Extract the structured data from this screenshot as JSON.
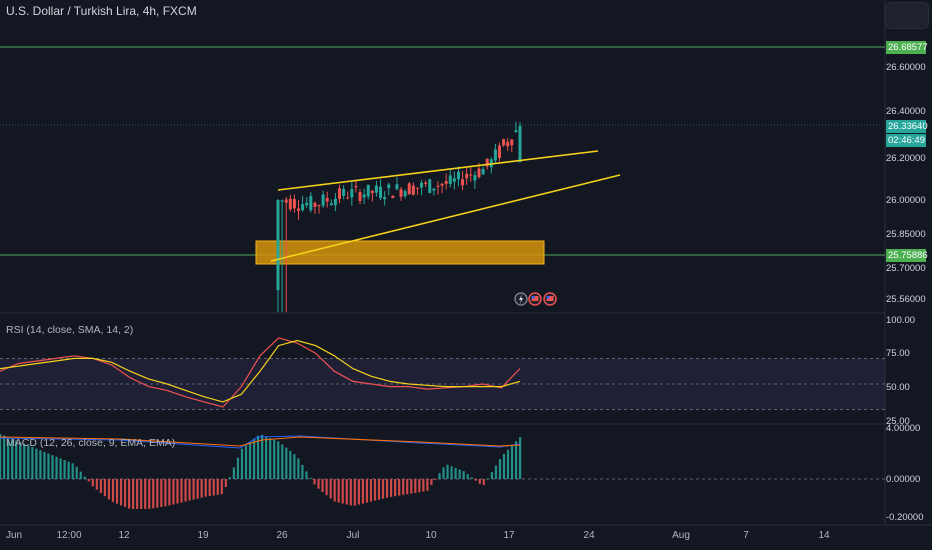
{
  "header": {
    "title": "U.S. Dollar / Turkish Lira, 4h, FXCM"
  },
  "colors": {
    "background": "#131722",
    "up": "#26a69a",
    "down": "#ef5350",
    "trendline": "#f5d21b",
    "zone": "#d7940a",
    "level": "#4caf50",
    "rsi": "#ef5350",
    "rsi_ma": "#f5d21b",
    "rsi_band": "#7e57c2",
    "macd_pos": "#26a69a",
    "macd_neg": "#ef5350",
    "macd_line": "#2962ff",
    "signal_line": "#ff6d00"
  },
  "price_axis": {
    "ticks": [
      "26.60000",
      "26.40000",
      "26.20000",
      "26.00000",
      "25.85000",
      "25.70000",
      "25.56000"
    ],
    "level_high": "26.68577",
    "current_price": "26.33640",
    "countdown": "02:46:49",
    "level_low": "25.75886"
  },
  "rsi_pane": {
    "title": "RSI (14, close, SMA, 14, 2)",
    "ticks": [
      "100.00",
      "75.00",
      "50.00",
      "25.00"
    ]
  },
  "macd_pane": {
    "title": "MACD (12, 26, close, 9, EMA, EMA)",
    "ticks": [
      "4.00000",
      "0.00000",
      "-0.20000"
    ]
  },
  "time_axis": {
    "labels": [
      "Jun",
      "12:00",
      "12",
      "19",
      "26",
      "Jul",
      "10",
      "17",
      "24",
      "Aug",
      "7",
      "14"
    ]
  },
  "icons": [
    "lightning-event-icon",
    "us-flag-event-icon",
    "us-flag-event-icon"
  ],
  "chart_data": [
    {
      "type": "candlestick",
      "title": "U.S. Dollar / Turkish Lira, 4h, FXCM",
      "x_range": [
        "Jun",
        "Aug 14"
      ],
      "ylim": [
        25.5,
        26.75
      ],
      "scale": "non-linear price axis as labeled",
      "current_price": 26.3364,
      "horizontal_levels": [
        26.68577,
        25.75886
      ],
      "support_zone": [
        25.76,
        25.82
      ],
      "trendlines": [
        {
          "name": "upper channel",
          "from": {
            "x": "Jun 24",
            "y": 26.07
          },
          "to": {
            "x": "Jul 29",
            "y": 26.21
          }
        },
        {
          "name": "lower channel",
          "from": {
            "x": "Jun 24",
            "y": 25.75
          },
          "to": {
            "x": "Jul 29",
            "y": 26.14
          }
        }
      ],
      "series": [
        {
          "values": [
            {
              "x": "Jun 23",
              "open": 25.56,
              "high": 26.05,
              "low": 25.5,
              "close": 26.0
            },
            {
              "x": "Jun 24",
              "open": 26.0,
              "high": 26.05,
              "low": 25.5,
              "close": 25.98
            },
            {
              "x": "Jun 28",
              "open": 26.02,
              "high": 26.1,
              "low": 25.92,
              "close": 26.03
            },
            {
              "x": "Jul 3",
              "open": 26.03,
              "high": 26.1,
              "low": 25.92,
              "close": 26.04
            },
            {
              "x": "Jul 7",
              "open": 26.04,
              "high": 26.12,
              "low": 25.95,
              "close": 26.06
            },
            {
              "x": "Jul 12",
              "open": 26.06,
              "high": 26.15,
              "low": 25.98,
              "close": 26.08
            },
            {
              "x": "Jul 14",
              "open": 26.08,
              "high": 26.18,
              "low": 26.01,
              "close": 26.15
            },
            {
              "x": "Jul 17",
              "open": 26.15,
              "high": 26.37,
              "low": 26.12,
              "close": 26.3364
            }
          ]
        }
      ]
    },
    {
      "type": "line",
      "title": "RSI (14, close, SMA, 14, 2)",
      "ylim": [
        25,
        100
      ],
      "bands": [
        30,
        50,
        70
      ],
      "series": [
        {
          "values": [
            60,
            66,
            68,
            70,
            72,
            70,
            65,
            55,
            48,
            45,
            40,
            36,
            32,
            48,
            72,
            86,
            82,
            74,
            60,
            52,
            50,
            48,
            48,
            46,
            47,
            48,
            50,
            47,
            62
          ]
        },
        {
          "values": [
            62,
            64,
            66,
            68,
            70,
            70,
            67,
            60,
            54,
            50,
            45,
            40,
            36,
            42,
            60,
            80,
            84,
            80,
            72,
            62,
            56,
            52,
            50,
            49,
            48,
            48,
            48,
            48,
            52
          ]
        }
      ]
    },
    {
      "type": "bar",
      "title": "MACD (12, 26, close, 9, EMA, EMA)",
      "ylim": [
        -0.2,
        4
      ],
      "series": [
        {
          "values": [
            0.3,
            0.25,
            0.2,
            0.15,
            0.1,
            -0.05,
            -0.15,
            -0.2,
            -0.2,
            -0.18,
            -0.15,
            -0.12,
            -0.1,
            0.2,
            0.3,
            0.25,
            0.15,
            -0.05,
            -0.15,
            -0.18,
            -0.15,
            -0.12,
            -0.1,
            -0.08,
            0.1,
            0.05,
            -0.05,
            0.15,
            0.28
          ]
        }
      ]
    }
  ]
}
